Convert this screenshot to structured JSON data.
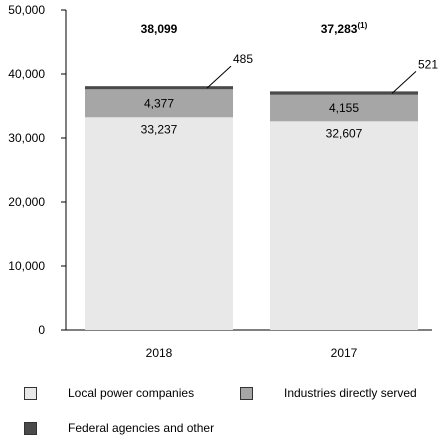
{
  "chart_data": {
    "type": "bar",
    "stacked": true,
    "categories": [
      "2018",
      "2017"
    ],
    "series": [
      {
        "name": "Local power companies",
        "values": [
          33237,
          32607
        ],
        "color": "#e8e8e8",
        "labels": [
          "33,237",
          "32,607"
        ]
      },
      {
        "name": "Industries directly served",
        "values": [
          4377,
          4155
        ],
        "color": "#a6a6a6",
        "labels": [
          "4,377",
          "4,155"
        ]
      },
      {
        "name": "Federal agencies and other",
        "values": [
          485,
          521
        ],
        "color": "#4a4a4a",
        "labels": [
          "485",
          "521"
        ]
      }
    ],
    "totals": [
      {
        "label": "38,099",
        "note": ""
      },
      {
        "label": "37,283",
        "note": "(1)"
      }
    ],
    "ylim": [
      0,
      50000
    ],
    "yticks": [
      {
        "value": 0,
        "label": "0"
      },
      {
        "value": 10000,
        "label": "10,000"
      },
      {
        "value": 20000,
        "label": "20,000"
      },
      {
        "value": 30000,
        "label": "30,000"
      },
      {
        "value": 40000,
        "label": "40,000"
      },
      {
        "value": 50000,
        "label": "50,000"
      }
    ],
    "grid": false,
    "legend_position": "bottom",
    "title": "",
    "xlabel": "",
    "ylabel": ""
  }
}
